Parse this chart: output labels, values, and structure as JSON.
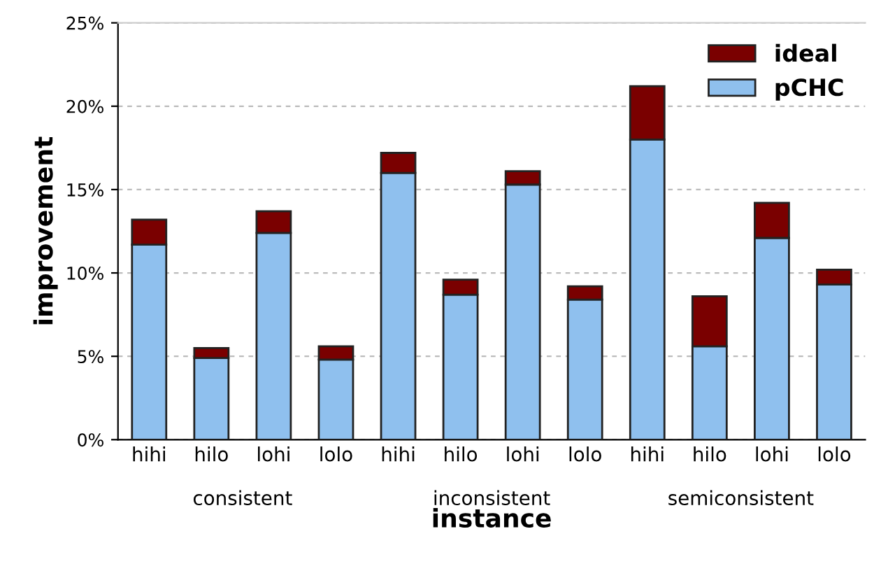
{
  "chart_data": {
    "type": "bar",
    "stacked": true,
    "xlabel": "instance",
    "ylabel": "improvement",
    "categories": [
      "hihi",
      "hilo",
      "lohi",
      "lolo",
      "hihi",
      "hilo",
      "lohi",
      "lolo",
      "hihi",
      "hilo",
      "lohi",
      "lolo"
    ],
    "series": [
      {
        "name": "pCHC",
        "color": "#8fc0ee",
        "values": [
          11.7,
          4.9,
          12.4,
          4.8,
          16.0,
          8.7,
          15.3,
          8.4,
          18.0,
          5.6,
          12.1,
          9.3
        ]
      },
      {
        "name": "ideal",
        "color": "#7a0000",
        "values": [
          1.5,
          0.6,
          1.3,
          0.8,
          1.2,
          0.9,
          0.8,
          0.8,
          3.2,
          3.0,
          2.1,
          0.9
        ]
      }
    ],
    "ylim": [
      0,
      25
    ],
    "yticks": [
      {
        "value": 0,
        "label": "0%"
      },
      {
        "value": 5,
        "label": "5%"
      },
      {
        "value": 10,
        "label": "10%"
      },
      {
        "value": 15,
        "label": "15%"
      },
      {
        "value": 20,
        "label": "20%"
      },
      {
        "value": 25,
        "label": "25%"
      }
    ],
    "annotations": [
      "consistent",
      "inconsistent",
      "semiconsistent"
    ],
    "grid": "y",
    "legend": "top right"
  }
}
